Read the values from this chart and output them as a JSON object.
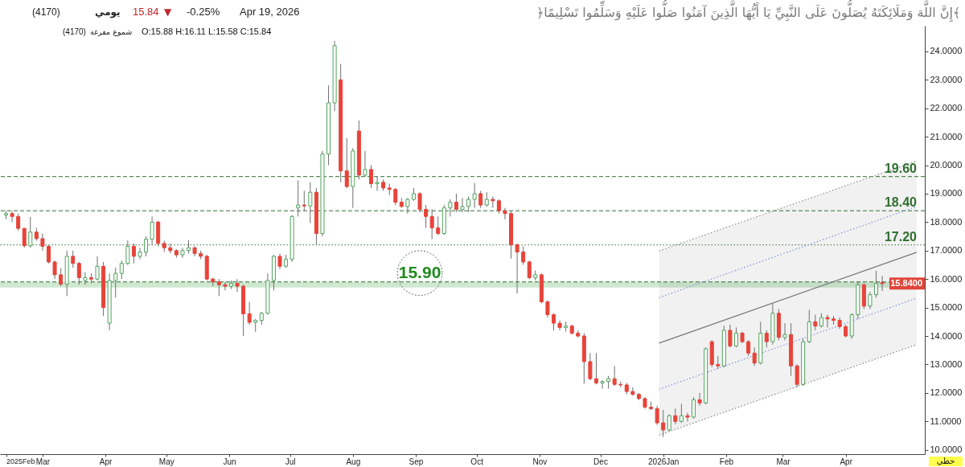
{
  "chart_data": {
    "type": "candlestick",
    "x": [
      "2025-02-11",
      "2025-02-14",
      "2025-02-17",
      "2025-02-20",
      "2025-02-23",
      "2025-02-26",
      "2025-03-01",
      "2025-03-04",
      "2025-03-07",
      "2025-03-10",
      "2025-03-13",
      "2025-03-16",
      "2025-03-19",
      "2025-03-22",
      "2025-03-25",
      "2025-03-28",
      "2025-03-31",
      "2025-04-03",
      "2025-04-06",
      "2025-04-09",
      "2025-04-12",
      "2025-04-15",
      "2025-04-18",
      "2025-04-21",
      "2025-04-24",
      "2025-04-27",
      "2025-04-30",
      "2025-05-03",
      "2025-05-06",
      "2025-05-09",
      "2025-05-12",
      "2025-05-15",
      "2025-05-18",
      "2025-05-21",
      "2025-05-24",
      "2025-05-27",
      "2025-05-30",
      "2025-06-02",
      "2025-06-05",
      "2025-06-08",
      "2025-06-11",
      "2025-06-14",
      "2025-06-17",
      "2025-06-20",
      "2025-06-23",
      "2025-06-26",
      "2025-06-29",
      "2025-07-02",
      "2025-07-05",
      "2025-07-08",
      "2025-07-11",
      "2025-07-14",
      "2025-07-17",
      "2025-07-20",
      "2025-07-23",
      "2025-07-26",
      "2025-07-29",
      "2025-08-01",
      "2025-08-04",
      "2025-08-07",
      "2025-08-10",
      "2025-08-13",
      "2025-08-16",
      "2025-08-19",
      "2025-08-22",
      "2025-08-25",
      "2025-08-28",
      "2025-08-31",
      "2025-09-03",
      "2025-09-06",
      "2025-09-09",
      "2025-09-12",
      "2025-09-15",
      "2025-09-18",
      "2025-09-21",
      "2025-09-24",
      "2025-09-27",
      "2025-09-30",
      "2025-10-03",
      "2025-10-06",
      "2025-10-09",
      "2025-10-12",
      "2025-10-15",
      "2025-10-18",
      "2025-10-21",
      "2025-10-24",
      "2025-10-27",
      "2025-10-30",
      "2025-11-02",
      "2025-11-05",
      "2025-11-08",
      "2025-11-11",
      "2025-11-14",
      "2025-11-17",
      "2025-11-20",
      "2025-11-23",
      "2025-11-26",
      "2025-11-29",
      "2025-12-02",
      "2025-12-05",
      "2025-12-08",
      "2025-12-11",
      "2025-12-14",
      "2025-12-17",
      "2025-12-20",
      "2025-12-23",
      "2025-12-26",
      "2025-12-29",
      "2026-01-01",
      "2026-01-04",
      "2026-01-07",
      "2026-01-10",
      "2026-01-13",
      "2026-01-16",
      "2026-01-19",
      "2026-01-22",
      "2026-01-25",
      "2026-01-28",
      "2026-01-31",
      "2026-02-03",
      "2026-02-06",
      "2026-02-09",
      "2026-02-12",
      "2026-02-15",
      "2026-02-18",
      "2026-02-21",
      "2026-02-24",
      "2026-02-27",
      "2026-03-02",
      "2026-03-05",
      "2026-03-08",
      "2026-03-11",
      "2026-03-14",
      "2026-03-17",
      "2026-03-20",
      "2026-03-23",
      "2026-03-26",
      "2026-03-29",
      "2026-04-01",
      "2026-04-04",
      "2026-04-07",
      "2026-04-10",
      "2026-04-13",
      "2026-04-16",
      "2026-04-19"
    ],
    "ohlc": [
      [
        18.25,
        18.4,
        18.1,
        18.3
      ],
      [
        18.3,
        18.38,
        18.0,
        18.2
      ],
      [
        18.2,
        18.3,
        17.7,
        17.78
      ],
      [
        17.78,
        17.8,
        17.1,
        17.17
      ],
      [
        17.17,
        18.18,
        17.1,
        17.65
      ],
      [
        17.65,
        17.8,
        17.35,
        17.42
      ],
      [
        17.42,
        17.6,
        17.0,
        17.15
      ],
      [
        17.15,
        17.2,
        16.55,
        16.6
      ],
      [
        16.6,
        16.65,
        16.0,
        16.15
      ],
      [
        16.15,
        16.38,
        15.75,
        15.82
      ],
      [
        15.82,
        17.0,
        15.4,
        16.8
      ],
      [
        16.8,
        17.0,
        16.4,
        16.55
      ],
      [
        16.55,
        16.6,
        15.8,
        16.05
      ],
      [
        15.95,
        16.25,
        15.8,
        16.05
      ],
      [
        16.05,
        16.2,
        15.85,
        16.0
      ],
      [
        16.0,
        16.8,
        15.95,
        16.45
      ],
      [
        16.45,
        16.6,
        14.7,
        15.0
      ],
      [
        14.45,
        16.2,
        14.2,
        15.95
      ],
      [
        15.95,
        16.4,
        15.35,
        16.2
      ],
      [
        16.2,
        16.65,
        16.0,
        16.55
      ],
      [
        16.55,
        17.36,
        16.5,
        17.15
      ],
      [
        17.15,
        17.25,
        16.55,
        16.8
      ],
      [
        16.8,
        17.1,
        16.7,
        16.95
      ],
      [
        16.95,
        17.5,
        16.8,
        17.4
      ],
      [
        17.4,
        18.2,
        17.2,
        18.0
      ],
      [
        18.0,
        18.05,
        17.15,
        17.25
      ],
      [
        17.25,
        17.35,
        16.95,
        17.1
      ],
      [
        17.1,
        17.25,
        16.9,
        17.0
      ],
      [
        17.0,
        17.05,
        16.75,
        16.85
      ],
      [
        16.85,
        17.1,
        16.75,
        17.0
      ],
      [
        17.0,
        17.36,
        16.9,
        17.1
      ],
      [
        17.1,
        17.15,
        16.8,
        16.9
      ],
      [
        16.9,
        17.0,
        16.7,
        16.8
      ],
      [
        16.8,
        16.85,
        15.95,
        16.0
      ],
      [
        16.0,
        16.05,
        15.75,
        15.9
      ],
      [
        15.9,
        16.0,
        15.4,
        15.8
      ],
      [
        15.8,
        15.9,
        15.6,
        15.75
      ],
      [
        15.75,
        15.95,
        15.65,
        15.85
      ],
      [
        15.85,
        16.0,
        15.55,
        15.75
      ],
      [
        15.75,
        15.8,
        14.0,
        14.78
      ],
      [
        14.78,
        15.2,
        14.4,
        14.48
      ],
      [
        14.48,
        14.6,
        14.15,
        14.55
      ],
      [
        14.55,
        14.85,
        14.4,
        14.8
      ],
      [
        14.8,
        16.2,
        14.75,
        15.95
      ],
      [
        15.95,
        16.85,
        15.6,
        16.8
      ],
      [
        16.8,
        16.9,
        16.35,
        16.45
      ],
      [
        16.45,
        16.85,
        16.4,
        16.7
      ],
      [
        16.7,
        18.25,
        16.6,
        18.2
      ],
      [
        18.5,
        19.47,
        18.2,
        18.6
      ],
      [
        18.6,
        19.1,
        18.4,
        18.57
      ],
      [
        18.57,
        19.4,
        17.97,
        19.05
      ],
      [
        19.05,
        19.2,
        17.22,
        17.6
      ],
      [
        17.6,
        20.5,
        17.5,
        20.39
      ],
      [
        20.39,
        22.8,
        20.0,
        22.19
      ],
      [
        22.19,
        24.37,
        21.9,
        24.2
      ],
      [
        23.0,
        23.56,
        19.4,
        19.8
      ],
      [
        19.8,
        20.95,
        19.2,
        19.25
      ],
      [
        19.25,
        20.6,
        18.5,
        20.5
      ],
      [
        21.2,
        21.57,
        19.5,
        19.65
      ],
      [
        19.65,
        20.5,
        19.6,
        19.85
      ],
      [
        19.85,
        20.0,
        19.2,
        19.35
      ],
      [
        19.35,
        19.6,
        19.1,
        19.4
      ],
      [
        19.4,
        19.5,
        19.1,
        19.2
      ],
      [
        19.2,
        19.35,
        18.95,
        19.15
      ],
      [
        19.15,
        19.2,
        18.6,
        18.7
      ],
      [
        18.7,
        18.85,
        18.5,
        18.55
      ],
      [
        18.55,
        18.85,
        18.3,
        18.8
      ],
      [
        18.8,
        19.2,
        18.75,
        19.0
      ],
      [
        19.0,
        19.05,
        18.35,
        18.45
      ],
      [
        18.45,
        18.6,
        17.8,
        18.2
      ],
      [
        18.2,
        18.45,
        17.4,
        17.8
      ],
      [
        17.8,
        18.2,
        17.55,
        17.6
      ],
      [
        17.6,
        18.6,
        17.55,
        18.5
      ],
      [
        18.5,
        18.8,
        18.2,
        18.7
      ],
      [
        18.7,
        19.0,
        18.35,
        18.45
      ],
      [
        18.45,
        18.85,
        18.35,
        18.55
      ],
      [
        18.55,
        18.9,
        18.35,
        18.8
      ],
      [
        18.8,
        19.38,
        18.5,
        19.0
      ],
      [
        19.0,
        19.1,
        18.5,
        18.6
      ],
      [
        18.6,
        19.05,
        18.55,
        18.8
      ],
      [
        18.8,
        18.9,
        18.5,
        18.75
      ],
      [
        18.75,
        18.8,
        18.3,
        18.4
      ],
      [
        18.4,
        18.5,
        18.1,
        18.3
      ],
      [
        18.3,
        18.4,
        16.72,
        17.2
      ],
      [
        17.2,
        17.25,
        15.49,
        16.95
      ],
      [
        16.95,
        17.15,
        16.5,
        16.6
      ],
      [
        16.6,
        16.65,
        16.0,
        16.05
      ],
      [
        16.05,
        16.3,
        15.95,
        16.15
      ],
      [
        16.15,
        16.2,
        15.15,
        15.2
      ],
      [
        15.2,
        15.25,
        14.65,
        14.75
      ],
      [
        14.75,
        14.8,
        14.2,
        14.45
      ],
      [
        14.45,
        14.55,
        14.2,
        14.3
      ],
      [
        14.3,
        14.5,
        14.15,
        14.35
      ],
      [
        14.35,
        14.4,
        14.05,
        14.1
      ],
      [
        14.1,
        14.2,
        13.95,
        14.0
      ],
      [
        14.0,
        14.1,
        12.32,
        13.1
      ],
      [
        13.1,
        13.4,
        12.45,
        12.5
      ],
      [
        12.5,
        13.4,
        12.3,
        12.35
      ],
      [
        12.35,
        12.45,
        12.15,
        12.4
      ],
      [
        12.4,
        12.6,
        12.15,
        12.5
      ],
      [
        12.5,
        12.95,
        12.25,
        12.3
      ],
      [
        12.3,
        12.4,
        12.2,
        12.28
      ],
      [
        12.28,
        12.35,
        11.95,
        12.05
      ],
      [
        12.05,
        12.2,
        11.9,
        11.95
      ],
      [
        11.95,
        12.0,
        11.75,
        11.8
      ],
      [
        11.8,
        11.85,
        11.45,
        11.5
      ],
      [
        11.5,
        11.7,
        11.4,
        11.45
      ],
      [
        11.45,
        11.55,
        10.88,
        10.95
      ],
      [
        10.95,
        11.4,
        10.45,
        10.7
      ],
      [
        10.7,
        11.25,
        10.65,
        11.2
      ],
      [
        11.2,
        11.45,
        10.9,
        11.0
      ],
      [
        11.0,
        11.62,
        10.95,
        11.2
      ],
      [
        11.2,
        11.3,
        11.0,
        11.15
      ],
      [
        11.15,
        11.85,
        11.1,
        11.76
      ],
      [
        11.76,
        12.0,
        11.55,
        11.65
      ],
      [
        11.65,
        13.6,
        11.6,
        13.55
      ],
      [
        13.8,
        13.85,
        12.9,
        13.0
      ],
      [
        13.0,
        13.3,
        12.85,
        12.95
      ],
      [
        12.95,
        14.36,
        12.9,
        14.2
      ],
      [
        14.2,
        14.4,
        13.6,
        13.65
      ],
      [
        13.65,
        14.3,
        13.6,
        14.1
      ],
      [
        14.1,
        14.15,
        13.75,
        13.8
      ],
      [
        13.8,
        13.85,
        13.3,
        13.4
      ],
      [
        13.4,
        13.6,
        12.95,
        13.05
      ],
      [
        13.05,
        14.5,
        13.0,
        14.1
      ],
      [
        14.1,
        14.2,
        13.6,
        13.8
      ],
      [
        13.8,
        15.15,
        13.7,
        14.8
      ],
      [
        14.8,
        14.95,
        13.85,
        13.95
      ],
      [
        13.95,
        14.45,
        13.85,
        14.05
      ],
      [
        14.05,
        14.45,
        12.6,
        12.95
      ],
      [
        12.95,
        13.0,
        12.2,
        12.3
      ],
      [
        12.3,
        13.9,
        12.25,
        13.8
      ],
      [
        13.8,
        14.92,
        13.75,
        14.5
      ],
      [
        14.5,
        14.75,
        14.2,
        14.35
      ],
      [
        14.35,
        14.8,
        14.3,
        14.65
      ],
      [
        14.65,
        14.75,
        14.3,
        14.6
      ],
      [
        14.6,
        14.7,
        14.4,
        14.55
      ],
      [
        14.55,
        14.65,
        14.25,
        14.33
      ],
      [
        14.33,
        14.4,
        13.95,
        14.0
      ],
      [
        14.0,
        14.8,
        13.9,
        14.75
      ],
      [
        14.75,
        15.9,
        14.6,
        15.8
      ],
      [
        15.8,
        15.85,
        14.95,
        15.05
      ],
      [
        15.05,
        15.55,
        14.95,
        15.45
      ],
      [
        15.45,
        16.29,
        15.35,
        15.85
      ],
      [
        15.88,
        16.11,
        15.58,
        15.84
      ]
    ],
    "colors": [
      "#4fa35c",
      "#e8433a",
      "#e8433a",
      "#e8433a",
      "#4fa35c",
      "#e8433a",
      "#e8433a",
      "#e8433a",
      "#e8433a",
      "#e8433a",
      "#4fa35c",
      "#e8433a",
      "#e8433a",
      "#4fa35c",
      "#e8433a",
      "#4fa35c",
      "#e8433a",
      "#4fa35c",
      "#4fa35c",
      "#4fa35c",
      "#4fa35c",
      "#e8433a",
      "#4fa35c",
      "#4fa35c",
      "#4fa35c",
      "#e8433a",
      "#e8433a",
      "#e8433a",
      "#e8433a",
      "#4fa35c",
      "#4fa35c",
      "#e8433a",
      "#e8433a",
      "#e8433a",
      "#e8433a",
      "#e8433a",
      "#e8433a",
      "#4fa35c",
      "#e8433a",
      "#e8433a",
      "#e8433a",
      "#4fa35c",
      "#4fa35c",
      "#4fa35c",
      "#4fa35c",
      "#e8433a",
      "#4fa35c",
      "#4fa35c",
      "#4fa35c",
      "#e8433a",
      "#4fa35c",
      "#e8433a",
      "#4fa35c",
      "#4fa35c",
      "#4fa35c",
      "#e8433a",
      "#e8433a",
      "#4fa35c",
      "#e8433a",
      "#4fa35c",
      "#e8433a",
      "#4fa35c",
      "#e8433a",
      "#e8433a",
      "#e8433a",
      "#e8433a",
      "#4fa35c",
      "#4fa35c",
      "#e8433a",
      "#e8433a",
      "#e8433a",
      "#e8433a",
      "#4fa35c",
      "#4fa35c",
      "#e8433a",
      "#4fa35c",
      "#4fa35c",
      "#4fa35c",
      "#e8433a",
      "#4fa35c",
      "#e8433a",
      "#e8433a",
      "#e8433a",
      "#e8433a",
      "#e8433a",
      "#e8433a",
      "#e8433a",
      "#4fa35c",
      "#e8433a",
      "#e8433a",
      "#e8433a",
      "#e8433a",
      "#4fa35c",
      "#e8433a",
      "#e8433a",
      "#e8433a",
      "#e8433a",
      "#e8433a",
      "#4fa35c",
      "#4fa35c",
      "#e8433a",
      "#e8433a",
      "#e8433a",
      "#e8433a",
      "#e8433a",
      "#e8433a",
      "#e8433a",
      "#e8433a",
      "#e8433a",
      "#4fa35c",
      "#e8433a",
      "#4fa35c",
      "#e8433a",
      "#4fa35c",
      "#e8433a",
      "#4fa35c",
      "#e8433a",
      "#e8433a",
      "#4fa35c",
      "#e8433a",
      "#4fa35c",
      "#e8433a",
      "#e8433a",
      "#e8433a",
      "#4fa35c",
      "#e8433a",
      "#4fa35c",
      "#e8433a",
      "#4fa35c",
      "#e8433a",
      "#e8433a",
      "#4fa35c",
      "#4fa35c",
      "#e8433a",
      "#4fa35c",
      "#e8433a",
      "#e8433a",
      "#e8433a",
      "#e8433a",
      "#4fa35c",
      "#4fa35c",
      "#e8433a",
      "#4fa35c",
      "#4fa35c",
      "#e8433a"
    ],
    "series": [
      {
        "type": "line",
        "x": [
          "2025-12-30",
          "2026-05-06"
        ],
        "values": [
          16.99,
          20.15
        ],
        "color": "#8c8c8c",
        "line_style": "dotted"
      },
      {
        "type": "line",
        "x": [
          "2025-12-30",
          "2026-05-06"
        ],
        "values": [
          15.35,
          18.55
        ],
        "color": "#7f93d9",
        "line_style": "dotted"
      },
      {
        "type": "line",
        "x": [
          "2025-12-30",
          "2026-05-06"
        ],
        "values": [
          13.75,
          16.94
        ],
        "color": "#777777",
        "line_style": "solid",
        "lower": [
          10.52,
          13.7
        ],
        "upper": [
          16.99,
          20.15
        ]
      },
      {
        "type": "line",
        "x": [
          "2025-12-30",
          "2026-05-06"
        ],
        "values": [
          12.13,
          15.33
        ],
        "color": "#7f93d9",
        "line_style": "dotted"
      },
      {
        "type": "line",
        "x": [
          "2025-12-30",
          "2026-05-06"
        ],
        "values": [
          10.52,
          13.7
        ],
        "color": "#8c8c8c",
        "line_style": "dotted"
      }
    ],
    "xlim": [
      "2025-02-10",
      "2026-05-08"
    ],
    "xticks": [
      {
        "value": "2025-02-11",
        "label": "2025Feb"
      },
      {
        "value": "2025-03-01",
        "label": "Mar"
      },
      {
        "value": "2025-04-01",
        "label": "Apr"
      },
      {
        "value": "2025-05-01",
        "label": "May"
      },
      {
        "value": "2025-06-01",
        "label": "Jun"
      },
      {
        "value": "2025-07-01",
        "label": "Jul"
      },
      {
        "value": "2025-08-01",
        "label": "Aug"
      },
      {
        "value": "2025-09-01",
        "label": "Sep"
      },
      {
        "value": "2025-10-01",
        "label": "Oct"
      },
      {
        "value": "2025-11-01",
        "label": "Nov"
      },
      {
        "value": "2025-12-01",
        "label": "Dec"
      },
      {
        "value": "2026-01-01",
        "label": "2026Jan"
      },
      {
        "value": "2026-02-01",
        "label": "Feb"
      },
      {
        "value": "2026-03-01",
        "label": "Mar"
      },
      {
        "value": "2026-04-01",
        "label": "Apr"
      }
    ],
    "ylim": [
      9.85,
      24.9
    ],
    "yticks": [
      {
        "value": 10,
        "label": "10.0000"
      },
      {
        "value": 11,
        "label": "11.0000"
      },
      {
        "value": 12,
        "label": "12.0000"
      },
      {
        "value": 13,
        "label": "13.0000"
      },
      {
        "value": 14,
        "label": "14.0000"
      },
      {
        "value": 15,
        "label": "15.0000"
      },
      {
        "value": 16,
        "label": "16.0000"
      },
      {
        "value": 17,
        "label": "17.0000"
      },
      {
        "value": 18,
        "label": "18.0000"
      },
      {
        "value": 19,
        "label": "19.0000"
      },
      {
        "value": 20,
        "label": "20.0000"
      },
      {
        "value": 21,
        "label": "21.0000"
      },
      {
        "value": 22,
        "label": "22.0000"
      },
      {
        "value": 23,
        "label": "23.0000"
      },
      {
        "value": 24,
        "label": "24.0000"
      }
    ],
    "ref_lines": [
      {
        "axis": "y",
        "value": 19.6,
        "label": "19.60",
        "color": "#2f6f2f",
        "line_style": "dashed"
      },
      {
        "axis": "y",
        "value": 18.4,
        "label": "18.40",
        "color": "#2f6f2f",
        "line_style": "dashed"
      },
      {
        "axis": "y",
        "value": 17.2,
        "label": "17.20",
        "color": "#2f6f2f",
        "line_style": "dotted"
      },
      {
        "axis": "y",
        "value": 15.9,
        "color": "#2f6f2f",
        "line_style": "dashed"
      }
    ],
    "bands": [
      {
        "axis": "y",
        "from": 15.7,
        "to": 15.9,
        "color": "#cfe9d1"
      }
    ],
    "annotations": [
      "(4170)",
      "يومي",
      "15.84",
      "▼",
      "-0.25%",
      "Apr 19, 2026",
      "(4170)",
      "شموع مفرغة",
      "O:15.88 H:16.11 L:15.58 C:15.84",
      {
        "text": "15.90",
        "x": "2025-09-03",
        "y": 15.9
      },
      {
        "text": "15.8400",
        "y": 15.84
      },
      "خطي",
      "﴿إِنَّ اللَّهَ وَمَلَائِكَتَهُ يُصَلُّونَ عَلَى النَّبِيِّ يَا أَيُّهَا الَّذِينَ آمَنُوا صَلُّوا عَلَيْهِ وَسَلِّمُوا تَسْلِيمًا﴾"
    ]
  }
}
